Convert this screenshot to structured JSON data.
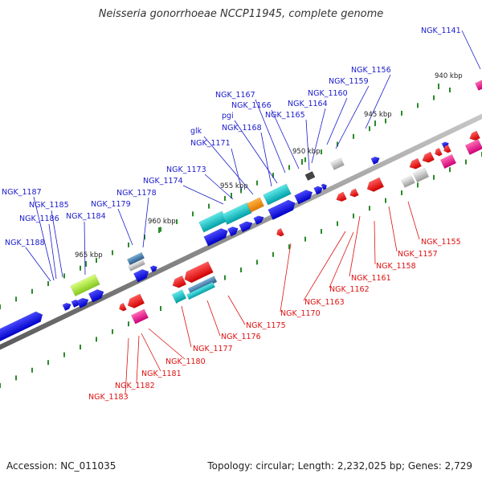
{
  "title": "Neisseria gonorrhoeae NCCP11945, complete genome",
  "footer": {
    "accession": "Accession: NC_011035",
    "summary": "Topology: circular; Length: 2,232,025 bp; Genes: 2,729"
  },
  "colors": {
    "forward_label": "#1a1acc",
    "reverse_label": "#dd1111",
    "backbone": "#8a8a8a",
    "tick": "#2a8a2a",
    "scale_text": "#222222"
  },
  "scale": [
    "940 kbp",
    "945 kbp",
    "950 kbp",
    "955 kbp",
    "960 kbp",
    "965 kbp"
  ],
  "genes_top": [
    "NGK_1141",
    "NGK_1156",
    "NGK_1159",
    "NGK_1160",
    "NGK_1164",
    "NGK_1165",
    "NGK_1166",
    "NGK_1167",
    "pgi",
    "NGK_1168",
    "glk",
    "NGK_1171",
    "NGK_1173",
    "NGK_1174",
    "NGK_1178",
    "NGK_1179",
    "NGK_1184",
    "NGK_1185",
    "NGK_1186",
    "NGK_1187",
    "NGK_1188"
  ],
  "genes_bottom": [
    "NGK_1155",
    "NGK_1157",
    "NGK_1158",
    "NGK_1161",
    "NGK_1162",
    "NGK_1163",
    "NGK_1170",
    "NGK_1175",
    "NGK_1176",
    "NGK_1177",
    "NGK_1180",
    "NGK_1181",
    "NGK_1182",
    "NGK_1183"
  ]
}
